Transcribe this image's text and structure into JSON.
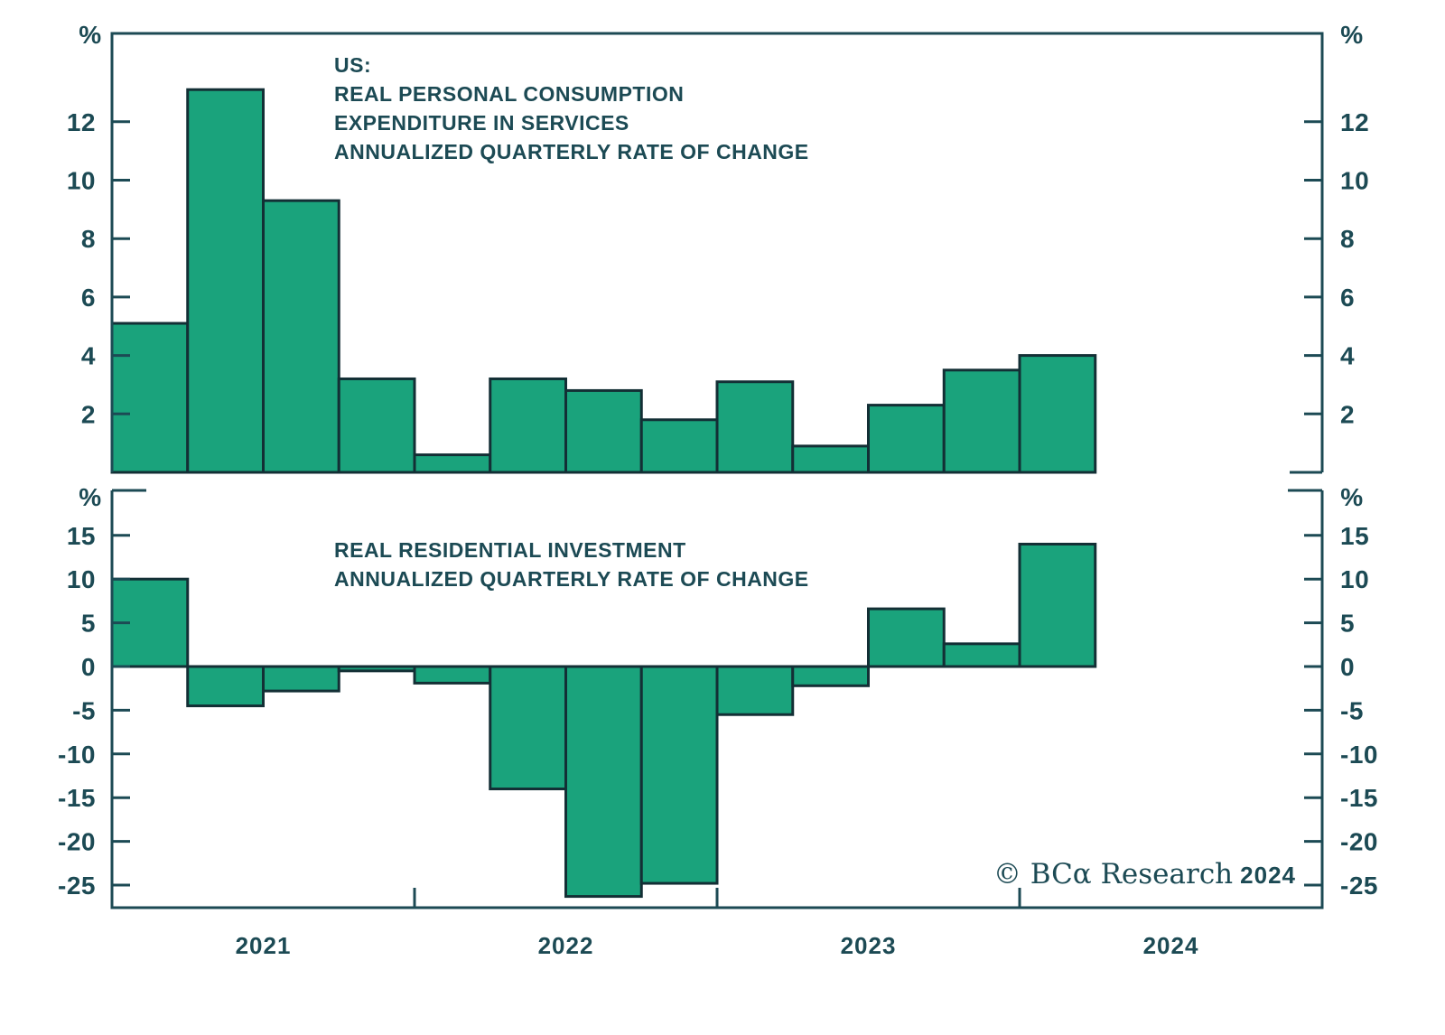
{
  "colors": {
    "background": "#ffffff",
    "bar_fill": "#1aa37c",
    "bar_stroke": "#132f35",
    "axis": "#1c4a54",
    "text": "#1c4a54"
  },
  "top_chart": {
    "title_lines": [
      "US:",
      "REAL PERSONAL CONSUMPTION",
      "EXPENDITURE IN SERVICES",
      "ANNUALIZED QUARTERLY RATE OF CHANGE"
    ],
    "y_unit_label": "%"
  },
  "bottom_chart": {
    "title_lines": [
      "REAL RESIDENTIAL INVESTMENT",
      "ANNUALIZED QUARTERLY RATE OF CHANGE"
    ],
    "y_unit_label": "%"
  },
  "footer": {
    "copyright_brand": "© BCα Research",
    "copyright_year": "2024"
  },
  "chart_data": [
    {
      "type": "bar",
      "title": "US: REAL PERSONAL CONSUMPTION EXPENDITURE IN SERVICES — ANNUALIZED QUARTERLY RATE OF CHANGE",
      "categories": [
        "2021 Q1",
        "2021 Q2",
        "2021 Q3",
        "2021 Q4",
        "2022 Q1",
        "2022 Q2",
        "2022 Q3",
        "2022 Q4",
        "2023 Q1",
        "2023 Q2",
        "2023 Q3",
        "2023 Q4",
        "2024 Q1"
      ],
      "values": [
        5.1,
        13.1,
        9.3,
        3.2,
        0.6,
        3.2,
        2.8,
        1.8,
        3.1,
        0.9,
        2.3,
        3.5,
        4.0
      ],
      "xlabel": "",
      "ylabel": "%",
      "ylim": [
        0,
        15
      ],
      "yticks": [
        2,
        4,
        6,
        8,
        10,
        12
      ],
      "xticklabels": [
        "2021",
        "2022",
        "2023",
        "2024"
      ],
      "grid": false,
      "legend_position": "none",
      "ylabel_position": "both-sides",
      "x_span_quarters": 16
    },
    {
      "type": "bar",
      "title": "REAL RESIDENTIAL INVESTMENT — ANNUALIZED QUARTERLY RATE OF CHANGE",
      "categories": [
        "2021 Q1",
        "2021 Q2",
        "2021 Q3",
        "2021 Q4",
        "2022 Q1",
        "2022 Q2",
        "2022 Q3",
        "2022 Q4",
        "2023 Q1",
        "2023 Q2",
        "2023 Q3",
        "2023 Q4",
        "2024 Q1"
      ],
      "values": [
        10.0,
        -4.5,
        -2.8,
        -0.5,
        -1.9,
        -14.0,
        -26.3,
        -24.8,
        -5.5,
        -2.2,
        6.6,
        2.6,
        14.0
      ],
      "xlabel": "",
      "ylabel": "%",
      "ylim": [
        -27.7,
        20
      ],
      "yticks": [
        15,
        10,
        5,
        0,
        -5,
        -10,
        -15,
        -20,
        -25
      ],
      "xticklabels": [
        "2021",
        "2022",
        "2023",
        "2024"
      ],
      "grid": false,
      "legend_position": "none",
      "ylabel_position": "both-sides",
      "x_span_quarters": 16
    }
  ]
}
